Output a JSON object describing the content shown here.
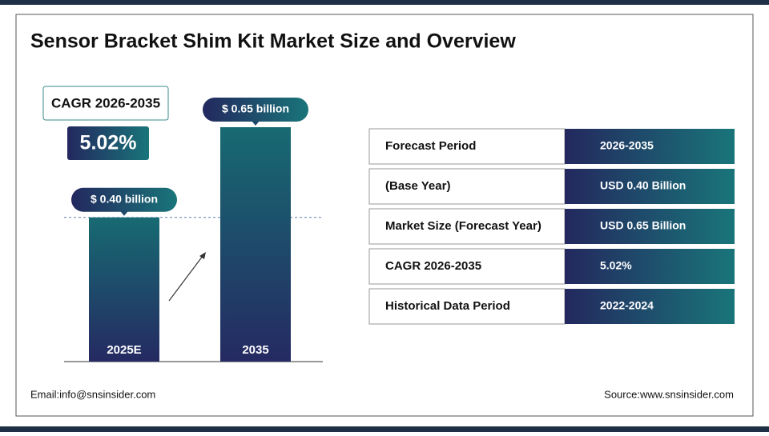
{
  "title": "Sensor Bracket Shim Kit Market Size and Overview",
  "cagr": {
    "label": "CAGR 2026-2035",
    "value": "5.02%"
  },
  "chart_data": {
    "type": "bar",
    "categories": [
      "2025E",
      "2035"
    ],
    "values": [
      0.4,
      0.65
    ],
    "value_labels": [
      "$ 0.40 billion",
      "$ 0.65 billion"
    ]
  },
  "table": {
    "rows": [
      [
        "Forecast Period",
        "2026-2035"
      ],
      [
        "(Base Year)",
        "USD 0.40 Billion"
      ],
      [
        "Market Size (Forecast Year)",
        "USD 0.65 Billion"
      ],
      [
        "CAGR 2026-2035",
        "5.02%"
      ],
      [
        "Historical Data Period",
        "2022-2024"
      ]
    ]
  },
  "footer": {
    "email": "Email:info@snsinsider.com",
    "source": "Source:www.snsinsider.com"
  }
}
